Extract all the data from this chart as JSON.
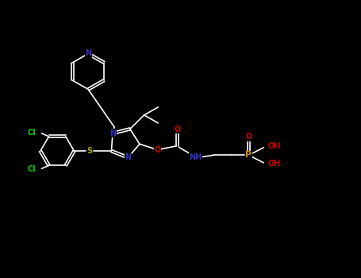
{
  "background_color": "#000000",
  "bond_color": "#ffffff",
  "figsize": [
    4.55,
    3.5
  ],
  "dpi": 100,
  "xlim": [
    0,
    9.0
  ],
  "ylim": [
    0,
    7.0
  ],
  "colors": {
    "N": "#3333bb",
    "S": "#aaaa00",
    "Cl": "#00cc00",
    "O": "#cc0000",
    "P": "#cc8800",
    "C": "#ffffff"
  }
}
